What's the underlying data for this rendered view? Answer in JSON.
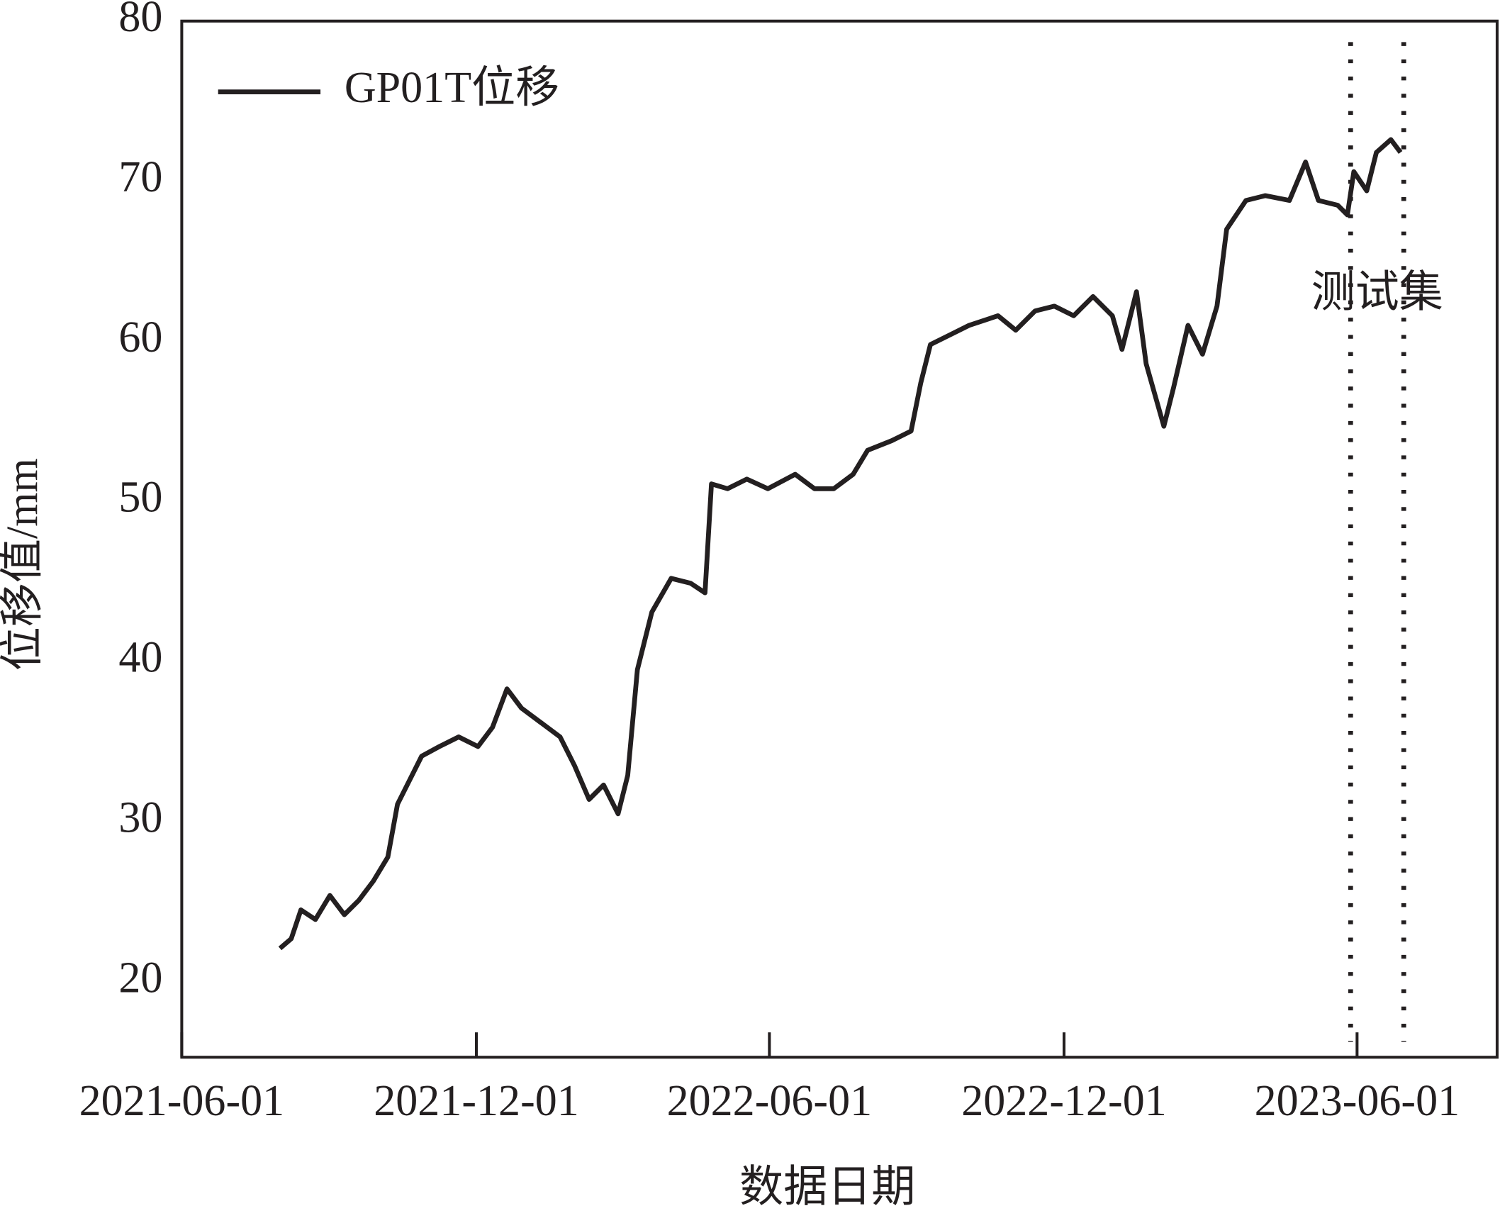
{
  "chart_data": {
    "type": "line",
    "x_label": "数据日期",
    "y_label": "位移值/mm",
    "xlim": [
      "2021-06-01",
      "2023-08-27"
    ],
    "xticks": [
      "2021-06-01",
      "2021-12-01",
      "2022-06-01",
      "2022-12-01",
      "2023-06-01"
    ],
    "ylim": [
      15.3,
      80
    ],
    "yticks": [
      20,
      30,
      40,
      50,
      60,
      70,
      80
    ],
    "grid": false,
    "legend": "upper left",
    "vlines": [
      "2023-05-28",
      "2023-06-30"
    ],
    "annotation": "测试集",
    "x": [
      "2021-08-01",
      "2021-08-08",
      "2021-08-14",
      "2021-08-23",
      "2021-09-01",
      "2021-09-10",
      "2021-09-19",
      "2021-09-28",
      "2021-10-07",
      "2021-10-13",
      "2021-10-19",
      "2021-10-28",
      "2021-11-08",
      "2021-11-20",
      "2021-12-02",
      "2021-12-11",
      "2021-12-20",
      "2021-12-29",
      "2022-01-10",
      "2022-01-22",
      "2022-01-31",
      "2022-02-09",
      "2022-02-18",
      "2022-02-27",
      "2022-03-05",
      "2022-03-11",
      "2022-03-20",
      "2022-04-01",
      "2022-04-13",
      "2022-04-22",
      "2022-04-26",
      "2022-05-06",
      "2022-05-18",
      "2022-05-31",
      "2022-06-17",
      "2022-06-29",
      "2022-07-11",
      "2022-07-23",
      "2022-08-01",
      "2022-08-16",
      "2022-08-28",
      "2022-09-03",
      "2022-09-09",
      "2022-09-21",
      "2022-10-03",
      "2022-10-21",
      "2022-11-01",
      "2022-11-13",
      "2022-11-25",
      "2022-12-07",
      "2022-12-19",
      "2022-12-31",
      "2023-01-06",
      "2023-01-15",
      "2023-01-21",
      "2023-02-01",
      "2023-02-07",
      "2023-02-16",
      "2023-02-25",
      "2023-03-06",
      "2023-03-12",
      "2023-03-24",
      "2023-04-05",
      "2023-04-20",
      "2023-04-30",
      "2023-05-08",
      "2023-05-20",
      "2023-05-26",
      "2023-05-30",
      "2023-06-07",
      "2023-06-13",
      "2023-06-22",
      "2023-06-28"
    ],
    "series": [
      {
        "name": "GP01T位移",
        "color": "#231f20",
        "values": [
          22.1,
          22.7,
          24.5,
          23.9,
          25.4,
          24.2,
          25.1,
          26.3,
          27.8,
          31.1,
          32.3,
          34.1,
          34.7,
          35.3,
          34.7,
          35.9,
          38.3,
          37.1,
          36.2,
          35.3,
          33.5,
          31.4,
          32.3,
          30.5,
          32.9,
          39.5,
          43.1,
          45.2,
          44.9,
          44.3,
          51.1,
          50.8,
          51.4,
          50.8,
          51.7,
          50.8,
          50.8,
          51.7,
          53.2,
          53.8,
          54.4,
          57.4,
          59.8,
          60.4,
          61.0,
          61.6,
          60.7,
          61.9,
          62.2,
          61.6,
          62.8,
          61.6,
          59.5,
          63.1,
          58.6,
          54.7,
          57.1,
          61.0,
          59.2,
          62.2,
          67.0,
          68.8,
          69.1,
          68.8,
          71.2,
          68.8,
          68.5,
          67.9,
          70.6,
          69.4,
          71.8,
          72.6,
          71.8
        ]
      }
    ]
  }
}
